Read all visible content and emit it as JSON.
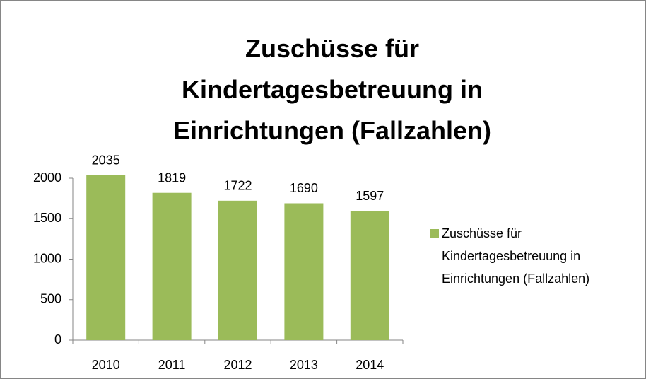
{
  "chart_data": {
    "type": "bar",
    "title": "Zuschüsse für Kindertagesbetreuung in Einrichtungen (Fallzahlen)",
    "categories": [
      "2010",
      "2011",
      "2012",
      "2013",
      "2014"
    ],
    "series": [
      {
        "name": "Zuschüsse für Kindertagesbetreuung in Einrichtungen (Fallzahlen)",
        "color": "#9bbb59",
        "values": [
          2035,
          1819,
          1722,
          1690,
          1597
        ]
      }
    ],
    "ylim": [
      0,
      2000
    ],
    "yticks": [
      0,
      500,
      1000,
      1500,
      2000
    ],
    "grid": false,
    "legend": "right"
  }
}
